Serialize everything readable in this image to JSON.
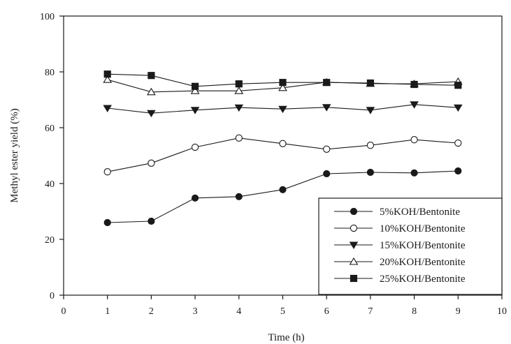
{
  "chart_data": {
    "type": "line",
    "title": "",
    "xlabel": "Time (h)",
    "ylabel": "Methyl ester yield (%)",
    "xlim": [
      0,
      10
    ],
    "ylim": [
      0,
      100
    ],
    "xticks": [
      "0",
      "1",
      "2",
      "3",
      "4",
      "5",
      "6",
      "7",
      "8",
      "9",
      "10"
    ],
    "yticks": [
      "0",
      "20",
      "40",
      "60",
      "80",
      "100"
    ],
    "grid": false,
    "legend_position": "bottom-right",
    "x": [
      1,
      2,
      3,
      4,
      5,
      6,
      7,
      8,
      9
    ],
    "series": [
      {
        "name": "5%KOH/Bentonite",
        "marker": "filled-circle",
        "values": [
          26,
          26.5,
          34.8,
          35.3,
          37.8,
          43.5,
          44,
          43.8,
          44.5
        ]
      },
      {
        "name": "10%KOH/Bentonite",
        "marker": "open-circle",
        "values": [
          44.2,
          47.3,
          53,
          56.3,
          54.3,
          52.3,
          53.7,
          55.7,
          54.5
        ]
      },
      {
        "name": "15%KOH/Bentonite",
        "marker": "filled-triangle-down",
        "values": [
          67,
          65.2,
          66.3,
          67.2,
          66.7,
          67.3,
          66.3,
          68.3,
          67.2
        ]
      },
      {
        "name": "20%KOH/Bentonite",
        "marker": "open-triangle-up",
        "values": [
          77.2,
          72.8,
          73.2,
          73.2,
          74.3,
          76.3,
          75.8,
          75.7,
          76.5
        ]
      },
      {
        "name": "25%KOH/Bentonite",
        "marker": "filled-square",
        "values": [
          79.2,
          78.7,
          74.8,
          75.7,
          76.2,
          76.2,
          76,
          75.5,
          75.2
        ]
      }
    ]
  }
}
